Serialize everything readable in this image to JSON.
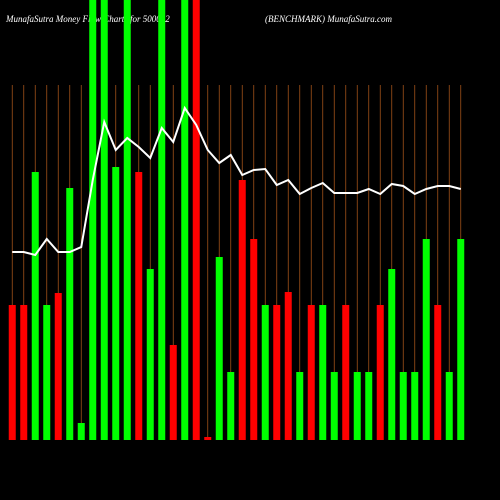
{
  "chart_data": {
    "type": "bar",
    "title": "MunafaSutra  Money Flow  Charts for 500052",
    "subtitle": "(BENCHMARK) MunafaSutra.com",
    "categories": [
      null,
      null,
      null,
      null,
      null,
      null,
      null,
      null,
      null,
      null,
      null,
      null,
      null,
      null,
      null,
      null,
      null,
      null,
      null,
      null,
      null,
      null,
      null,
      null,
      null,
      null,
      null,
      null,
      null,
      null,
      null,
      null,
      null,
      null,
      null,
      null,
      null,
      null,
      null,
      null
    ],
    "values": [
      135,
      135,
      268,
      135,
      147,
      252,
      17,
      440,
      440,
      273,
      440,
      268,
      171,
      440,
      95,
      440,
      440,
      3,
      183,
      68,
      260,
      201,
      135,
      135,
      148,
      68,
      135,
      135,
      68,
      135,
      68,
      68,
      135,
      171,
      68,
      68,
      201,
      135,
      68,
      201
    ],
    "colors": [
      "#ff0000",
      "#ff0000",
      "#00ff00",
      "#00ff00",
      "#ff0000",
      "#00ff00",
      "#00ff00",
      "#00ff00",
      "#00ff00",
      "#00ff00",
      "#00ff00",
      "#ff0000",
      "#00ff00",
      "#00ff00",
      "#ff0000",
      "#00ff00",
      "#ff0000",
      "#ff0000",
      "#00ff00",
      "#00ff00",
      "#ff0000",
      "#ff0000",
      "#00ff00",
      "#ff0000",
      "#ff0000",
      "#00ff00",
      "#ff0000",
      "#00ff00",
      "#00ff00",
      "#ff0000",
      "#00ff00",
      "#00ff00",
      "#ff0000",
      "#00ff00",
      "#00ff00",
      "#00ff00",
      "#00ff00",
      "#ff0000",
      "#00ff00",
      "#00ff00"
    ],
    "line_values": [
      188,
      188,
      185,
      201,
      188,
      188,
      193,
      260,
      318,
      290,
      302,
      293,
      282,
      312,
      298,
      332,
      315,
      290,
      277,
      285,
      265,
      270,
      271,
      255,
      260,
      246,
      252,
      257,
      247,
      247,
      247,
      251,
      246,
      256,
      254,
      246,
      251,
      254,
      254,
      251
    ],
    "line_color": "#ffffff",
    "grid": true,
    "grid_color": "#a0521a",
    "ylim": [
      0,
      440
    ]
  }
}
